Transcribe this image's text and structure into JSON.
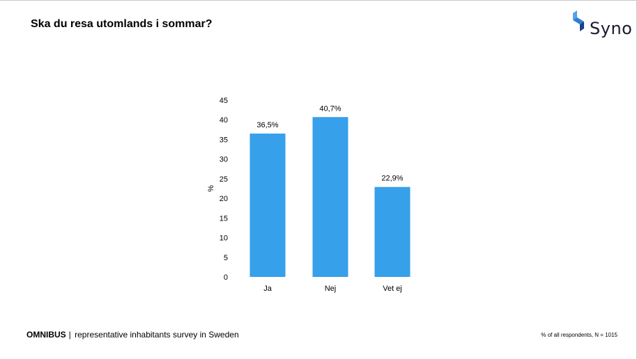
{
  "header": {
    "title": "Ska du resa utomlands i sommar?"
  },
  "logo": {
    "text": "Syno",
    "icon": "syno-cube-logo",
    "colors": [
      "#2e7fd1",
      "#1d3f8c",
      "#5aa0e6"
    ]
  },
  "footer": {
    "brand": "OMNIBUS",
    "separator": "|",
    "description": "representative inhabitants survey in Sweden",
    "note": "% of all respondents, N = 1015"
  },
  "chart_data": {
    "type": "bar",
    "title": "",
    "xlabel": "",
    "ylabel": "%",
    "categories": [
      "Ja",
      "Nej",
      "Vet ej"
    ],
    "values": [
      36.5,
      40.7,
      22.9
    ],
    "data_labels": [
      "36,5%",
      "40,7%",
      "22,9%"
    ],
    "ylim": [
      0,
      45
    ],
    "yticks": [
      0,
      5,
      10,
      15,
      20,
      25,
      30,
      35,
      40,
      45
    ],
    "grid": false,
    "legend": "none",
    "bar_color": "#36a0ea"
  }
}
